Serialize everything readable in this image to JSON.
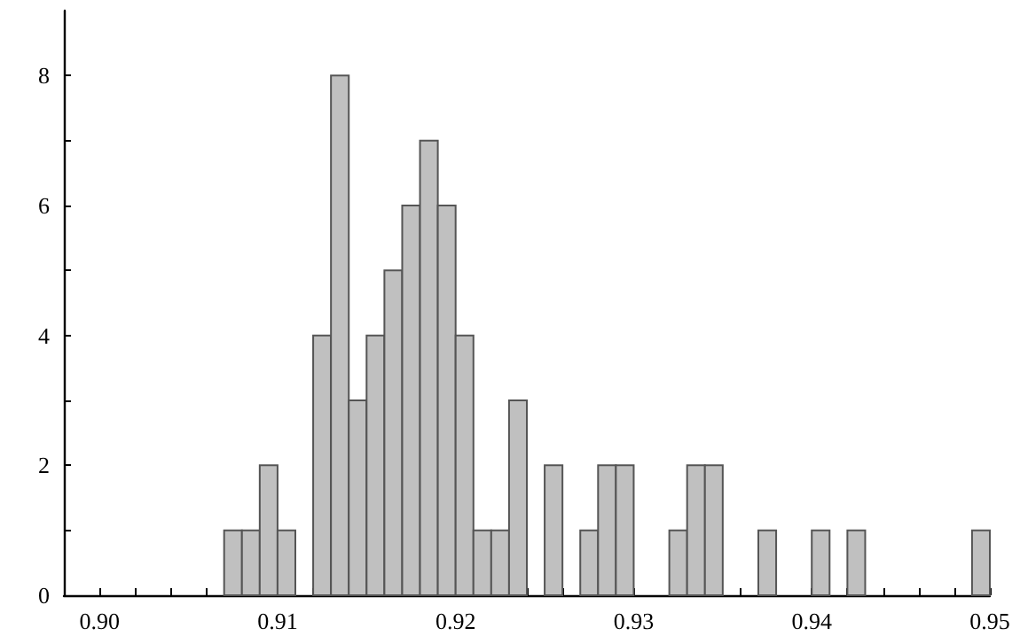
{
  "chart_data": {
    "type": "histogram",
    "bins": [
      0.907,
      0.908,
      0.909,
      0.91,
      0.911,
      0.912,
      0.913,
      0.914,
      0.915,
      0.916,
      0.917,
      0.918,
      0.919,
      0.92,
      0.921,
      0.922,
      0.923,
      0.924,
      0.925,
      0.926,
      0.927,
      0.928,
      0.929,
      0.93,
      0.931,
      0.932,
      0.933,
      0.934,
      0.935,
      0.936,
      0.937,
      0.938,
      0.939,
      0.94,
      0.941,
      0.942,
      0.943,
      0.944,
      0.945,
      0.946,
      0.947,
      0.948,
      0.949,
      0.95
    ],
    "values": [
      1,
      1,
      2,
      1,
      0,
      4,
      8,
      3,
      4,
      5,
      6,
      7,
      6,
      4,
      1,
      1,
      3,
      0,
      2,
      0,
      1,
      2,
      2,
      0,
      0,
      1,
      2,
      2,
      0,
      0,
      1,
      0,
      0,
      1,
      0,
      1,
      0,
      0,
      0,
      0,
      0,
      0,
      1
    ],
    "color": "#c0c0c0",
    "xlim": [
      0.898,
      0.95
    ],
    "xticks": [
      {
        "value": 0.898,
        "label": null
      },
      {
        "value": 0.9,
        "label": "0.90"
      },
      {
        "value": 0.902,
        "label": null
      },
      {
        "value": 0.904,
        "label": null
      },
      {
        "value": 0.906,
        "label": null
      },
      {
        "value": 0.908,
        "label": null
      },
      {
        "value": 0.91,
        "label": "0.91"
      },
      {
        "value": 0.912,
        "label": null
      },
      {
        "value": 0.914,
        "label": null
      },
      {
        "value": 0.916,
        "label": null
      },
      {
        "value": 0.918,
        "label": null
      },
      {
        "value": 0.92,
        "label": "0.92"
      },
      {
        "value": 0.922,
        "label": null
      },
      {
        "value": 0.924,
        "label": null
      },
      {
        "value": 0.926,
        "label": null
      },
      {
        "value": 0.928,
        "label": null
      },
      {
        "value": 0.93,
        "label": "0.93"
      },
      {
        "value": 0.932,
        "label": null
      },
      {
        "value": 0.934,
        "label": null
      },
      {
        "value": 0.936,
        "label": null
      },
      {
        "value": 0.938,
        "label": null
      },
      {
        "value": 0.94,
        "label": "0.94"
      },
      {
        "value": 0.942,
        "label": null
      },
      {
        "value": 0.944,
        "label": null
      },
      {
        "value": 0.946,
        "label": null
      },
      {
        "value": 0.948,
        "label": null
      },
      {
        "value": 0.95,
        "label": "0.95"
      }
    ],
    "ylim": [
      0,
      9
    ],
    "yticks": [
      0,
      {
        "value": 1,
        "label": null
      },
      2,
      {
        "value": 3,
        "label": null
      },
      4,
      {
        "value": 5,
        "label": null
      },
      6,
      {
        "value": 7,
        "label": null
      },
      8
    ],
    "grid": false
  }
}
